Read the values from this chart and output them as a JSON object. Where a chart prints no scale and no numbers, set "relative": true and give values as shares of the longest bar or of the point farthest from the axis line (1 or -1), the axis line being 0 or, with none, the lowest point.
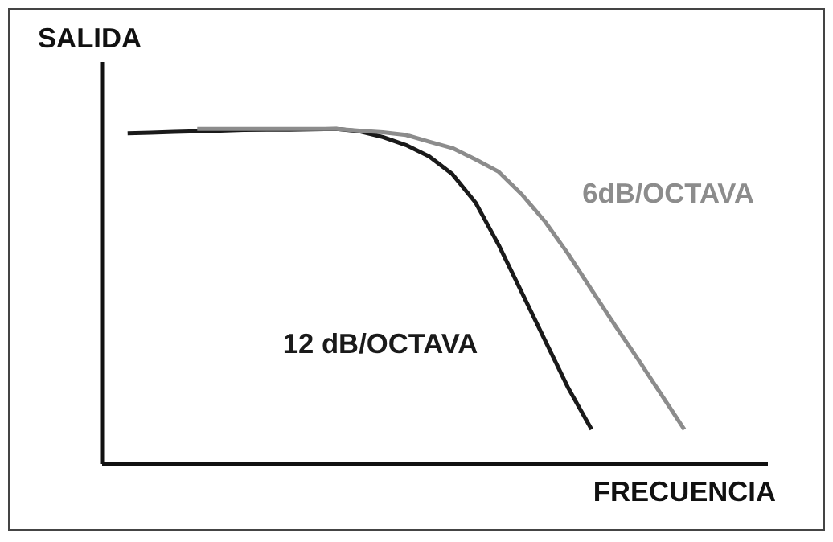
{
  "chart_data": {
    "type": "line",
    "relative": true,
    "xlabel": "FRECUENCIA",
    "ylabel": "SALIDA",
    "line_style": "solid",
    "categories": [
      null,
      null,
      null,
      null,
      null,
      null,
      null,
      null,
      null,
      null,
      null,
      null,
      null,
      null,
      null,
      null,
      null,
      null,
      null,
      null,
      null,
      null,
      null,
      null,
      null
    ],
    "series": [
      {
        "name": "12 dB/OCTAVA",
        "color": "#1a1a1a",
        "values": [
          0.987,
          0.989,
          0.991,
          0.993,
          0.995,
          0.997,
          0.998,
          0.998,
          0.999,
          1,
          0.993,
          0.976,
          0.952,
          0.918,
          0.865,
          0.78,
          0.653,
          0.511,
          0.368,
          0.226,
          0.103,
          null,
          null,
          null,
          null
        ]
      },
      {
        "name": "6dB/OCTAVA",
        "color": "#8c8c8c",
        "values": [
          null,
          null,
          null,
          1,
          1,
          1,
          1,
          1,
          1,
          1,
          0.995,
          0.99,
          0.982,
          0.962,
          0.943,
          0.909,
          0.872,
          0.804,
          0.723,
          0.626,
          0.52,
          0.415,
          0.313,
          0.208,
          0.103
        ]
      }
    ]
  }
}
